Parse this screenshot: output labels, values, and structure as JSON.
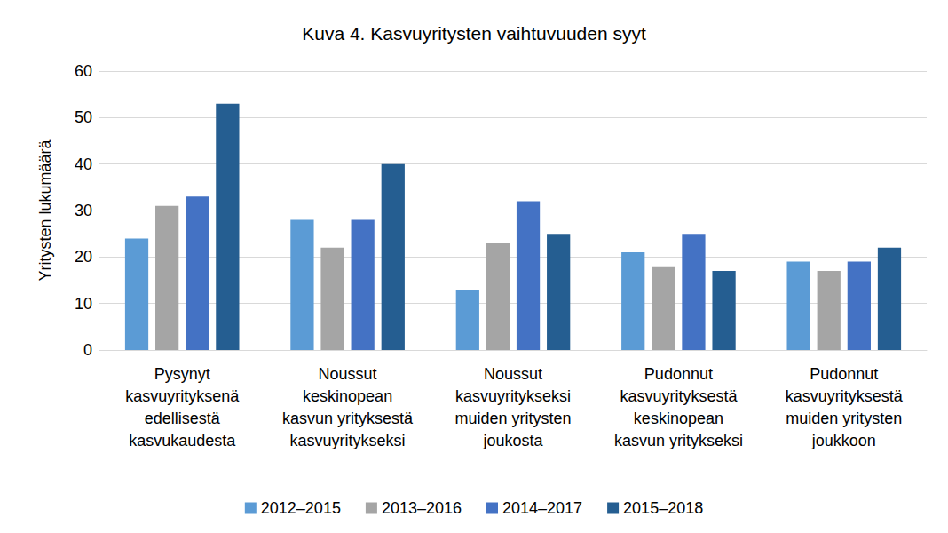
{
  "chart_data": {
    "type": "bar",
    "title": "Kuva 4. Kasvuyritysten vaihtuvuuden syyt",
    "y_label": "Yritysten lukumäärä",
    "categories": [
      "Pysynyt\nkasvuyrityksenä\nedellisestä\nkasvukaudesta",
      "Noussut\nkeskinopean\nkasvun yrityksestä\nkasvuyritykseksi",
      "Noussut\nkasvuyritykseksi\nmuiden yritysten\njoukosta",
      "Pudonnut\nkasvuyrityksestä\nkeskinopean\nkasvun yritykseksi",
      "Pudonnut\nkasvuyrityksestä\nmuiden yritysten\njoukkoon"
    ],
    "series": [
      {
        "name": "2012–2015",
        "color": "#5B9BD5",
        "values": [
          24,
          28,
          13,
          21,
          19
        ]
      },
      {
        "name": "2013–2016",
        "color": "#A5A5A5",
        "values": [
          31,
          22,
          23,
          18,
          17
        ]
      },
      {
        "name": "2014–2017",
        "color": "#4472C4",
        "values": [
          33,
          28,
          32,
          25,
          19
        ]
      },
      {
        "name": "2015–2018",
        "color": "#255E91",
        "values": [
          53,
          40,
          25,
          17,
          22
        ]
      }
    ],
    "ylim": [
      0,
      60
    ],
    "yticks": [
      0,
      10,
      20,
      30,
      40,
      50,
      60
    ],
    "grid": true,
    "legend": "bottom"
  }
}
